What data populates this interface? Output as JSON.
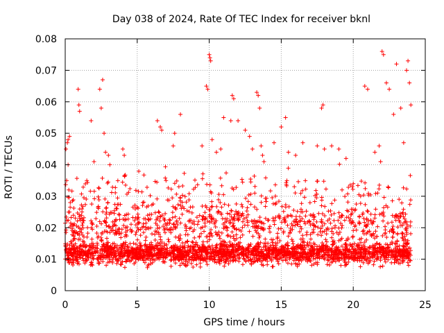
{
  "chart_data": {
    "type": "scatter",
    "title": "Day 038 of 2024, Rate Of TEC Index for receiver bknl",
    "xlabel": "GPS time / hours",
    "ylabel": "ROTI / TECUs",
    "xlim": [
      0,
      25
    ],
    "ylim": [
      0,
      0.08
    ],
    "x_ticks": [
      "0",
      "5",
      "10",
      "15",
      "20",
      "25"
    ],
    "y_ticks": [
      "0",
      "0.01",
      "0.02",
      "0.03",
      "0.04",
      "0.05",
      "0.06",
      "0.07",
      "0.08"
    ],
    "grid": true,
    "marker": "+",
    "color": "#ff0000",
    "series": [
      {
        "x": [
          0.05,
          0.1,
          0.15,
          0.2,
          0.25,
          0.3,
          0.2,
          0.3,
          0.35,
          0.9,
          0.95,
          1.0,
          1.5,
          1.8,
          2.0,
          2.4,
          2.5,
          2.6,
          2.7,
          2.8,
          3.0,
          3.1,
          4.0,
          4.1,
          6.4,
          6.6,
          6.7,
          7.0,
          7.5,
          7.6,
          8.0,
          9.5,
          9.8,
          9.9,
          10.0,
          10.05,
          10.1,
          10.2,
          10.5,
          10.8,
          11.0,
          11.5,
          11.6,
          11.7,
          12.0,
          12.5,
          12.8,
          13.0,
          13.3,
          13.4,
          13.5,
          13.6,
          13.7,
          13.8,
          14.5,
          15.0,
          15.3,
          15.5,
          16.0,
          16.5,
          17.5,
          17.8,
          17.9,
          18.0,
          18.5,
          19.0,
          19.5,
          20.0,
          20.8,
          21.0,
          21.5,
          21.8,
          21.9,
          22.0,
          22.1,
          22.3,
          22.5,
          22.8,
          23.0,
          23.3,
          23.5,
          23.7,
          23.8,
          23.9,
          24.0
        ],
        "y": [
          0.045,
          0.035,
          0.047,
          0.048,
          0.032,
          0.049,
          0.04,
          0.025,
          0.028,
          0.064,
          0.059,
          0.057,
          0.035,
          0.054,
          0.041,
          0.064,
          0.058,
          0.067,
          0.05,
          0.044,
          0.043,
          0.04,
          0.045,
          0.043,
          0.054,
          0.052,
          0.051,
          0.035,
          0.046,
          0.05,
          0.056,
          0.046,
          0.065,
          0.064,
          0.075,
          0.074,
          0.073,
          0.048,
          0.044,
          0.045,
          0.055,
          0.054,
          0.062,
          0.061,
          0.054,
          0.051,
          0.049,
          0.045,
          0.063,
          0.062,
          0.058,
          0.046,
          0.043,
          0.041,
          0.047,
          0.052,
          0.055,
          0.044,
          0.043,
          0.047,
          0.046,
          0.058,
          0.059,
          0.045,
          0.046,
          0.045,
          0.042,
          0.034,
          0.065,
          0.064,
          0.044,
          0.046,
          0.041,
          0.076,
          0.075,
          0.066,
          0.064,
          0.056,
          0.072,
          0.058,
          0.047,
          0.07,
          0.073,
          0.066,
          0.059
        ]
      }
    ]
  }
}
